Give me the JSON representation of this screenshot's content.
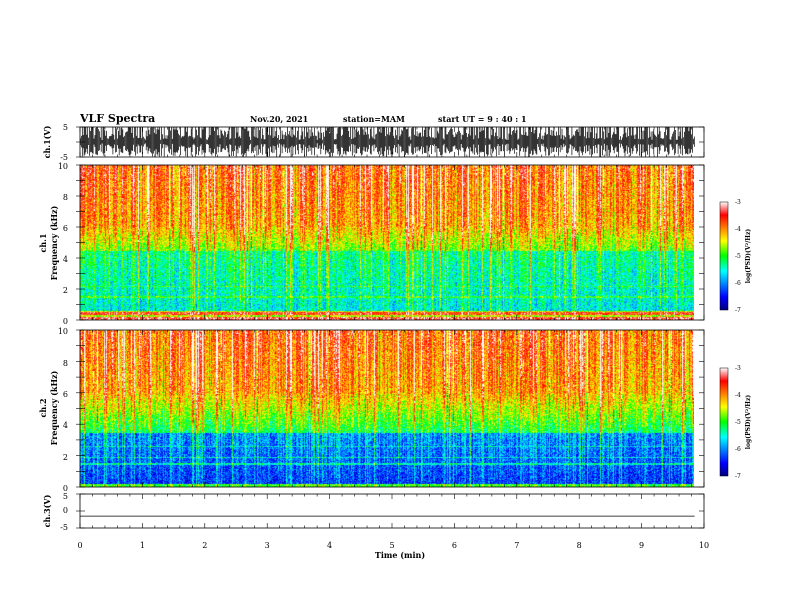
{
  "header": {
    "title": "VLF Spectra",
    "date": "Nov.20, 2021",
    "station": "station=MAM",
    "start": "start  UT =   9 : 40 : 1"
  },
  "chart_data": [
    {
      "id": "ch1-waveform",
      "type": "line",
      "ylabel": "ch.1(V)",
      "ylim": [
        -5,
        5
      ],
      "yticks": [
        "5",
        "-5"
      ],
      "xlim": [
        0,
        10
      ]
    },
    {
      "id": "ch1-spectrogram",
      "type": "heatmap",
      "ylabel_line1": "ch.1",
      "ylabel_line2": "Frequency (kHz)",
      "ylim": [
        0,
        10
      ],
      "yticks": [
        "0",
        "2",
        "4",
        "6",
        "8",
        "10"
      ],
      "xlim": [
        0,
        10
      ],
      "data_extent_min": 9.85,
      "colorbar": {
        "label": "log(PSD)(V²/Hz)",
        "range": [
          -7,
          -3
        ],
        "ticks": [
          "-3",
          "-4",
          "-5",
          "-6",
          "-7"
        ]
      }
    },
    {
      "id": "ch2-spectrogram",
      "type": "heatmap",
      "ylabel_line1": "ch.2",
      "ylabel_line2": "Frequency (kHz)",
      "ylim": [
        0,
        10
      ],
      "yticks": [
        "0",
        "2",
        "4",
        "6",
        "8",
        "10"
      ],
      "xlim": [
        0,
        10
      ],
      "data_extent_min": 9.85,
      "colorbar": {
        "label": "log(PSD)(V²/Hz)",
        "range": [
          -7,
          -3
        ],
        "ticks": [
          "-3",
          "-4",
          "-5",
          "-6",
          "-7"
        ]
      }
    },
    {
      "id": "ch3-waveform",
      "type": "line",
      "ylabel": "ch.3(V)",
      "ylim": [
        -5,
        5
      ],
      "yticks": [
        "5",
        "0",
        "-5"
      ],
      "constant_value": -1.5,
      "xlim": [
        0,
        10
      ],
      "xlabel": "Time (min)",
      "xticks": [
        "0",
        "1",
        "2",
        "3",
        "4",
        "5",
        "6",
        "7",
        "8",
        "9",
        "10"
      ]
    }
  ]
}
